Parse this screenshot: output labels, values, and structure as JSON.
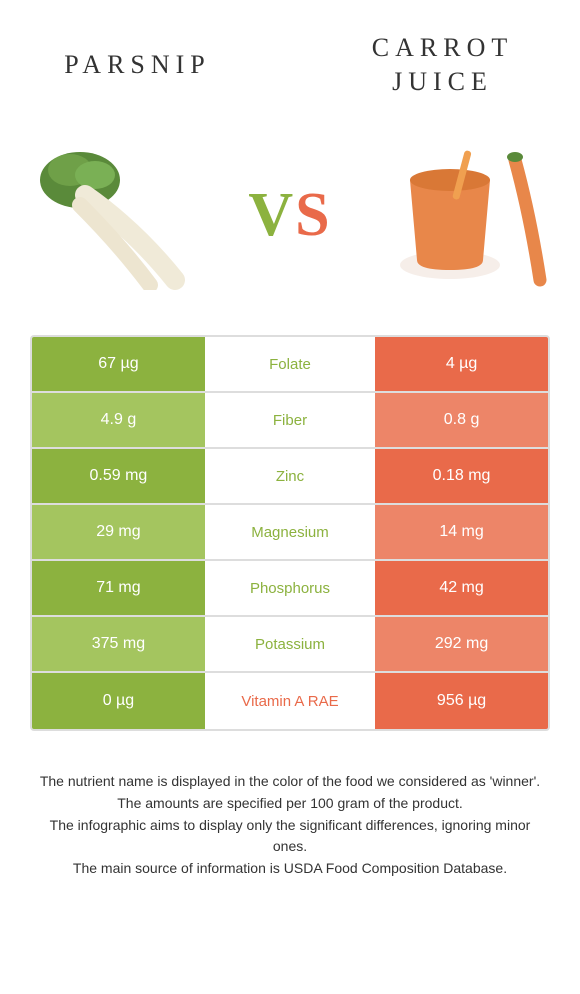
{
  "food_left": {
    "name": "PARSNIP",
    "color": "#8cb23f",
    "light_color": "#a4c55f"
  },
  "food_right": {
    "name": "CARROT JUICE",
    "color": "#e96a4a",
    "light_color": "#ed8568"
  },
  "vs_label": "VS",
  "nutrients": [
    {
      "name": "Folate",
      "left": "67 µg",
      "right": "4 µg",
      "winner": "left"
    },
    {
      "name": "Fiber",
      "left": "4.9 g",
      "right": "0.8 g",
      "winner": "left"
    },
    {
      "name": "Zinc",
      "left": "0.59 mg",
      "right": "0.18 mg",
      "winner": "left"
    },
    {
      "name": "Magnesium",
      "left": "29 mg",
      "right": "14 mg",
      "winner": "left"
    },
    {
      "name": "Phosphorus",
      "left": "71 mg",
      "right": "42 mg",
      "winner": "left"
    },
    {
      "name": "Potassium",
      "left": "375 mg",
      "right": "292 mg",
      "winner": "left"
    },
    {
      "name": "Vitamin A RAE",
      "left": "0 µg",
      "right": "956 µg",
      "winner": "right"
    }
  ],
  "footer_lines": [
    "The nutrient name is displayed in the color of the food we considered as 'winner'.",
    "The amounts are specified per 100 gram of the product.",
    "The infographic aims to display only the significant differences, ignoring minor ones.",
    "The main source of information is USDA Food Composition Database."
  ]
}
